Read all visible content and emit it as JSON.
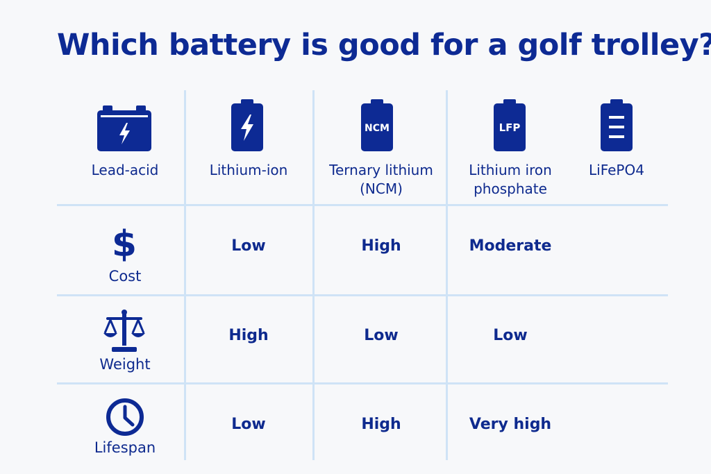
{
  "title": "Which battery is good for a golf trolley?",
  "colors": {
    "primary": "#0d2a94",
    "grid": "#cfe3f6",
    "background": "#f7f8fa"
  },
  "batteries": [
    {
      "name": "Lead-acid",
      "icon": "car-battery-bolt-icon"
    },
    {
      "name": "Lithium-ion",
      "icon": "battery-bolt-icon"
    },
    {
      "name": "Ternary lithium\n(NCM)",
      "icon": "battery-ncm-icon",
      "icon_text": "NCM"
    },
    {
      "name": "Lithium iron\nphosphate",
      "icon": "battery-lfp-icon",
      "icon_text": "LFP"
    },
    {
      "name": "LiFePO4",
      "icon": "battery-levels-icon"
    }
  ],
  "rows": [
    {
      "label": "Cost",
      "icon": "dollar-icon",
      "values": [
        "Low",
        "High",
        "Moderate"
      ]
    },
    {
      "label": "Weight",
      "icon": "scale-icon",
      "values": [
        "High",
        "Low",
        "Low"
      ]
    },
    {
      "label": "Lifespan",
      "icon": "clock-icon",
      "values": [
        "Low",
        "High",
        "Very high"
      ]
    }
  ]
}
